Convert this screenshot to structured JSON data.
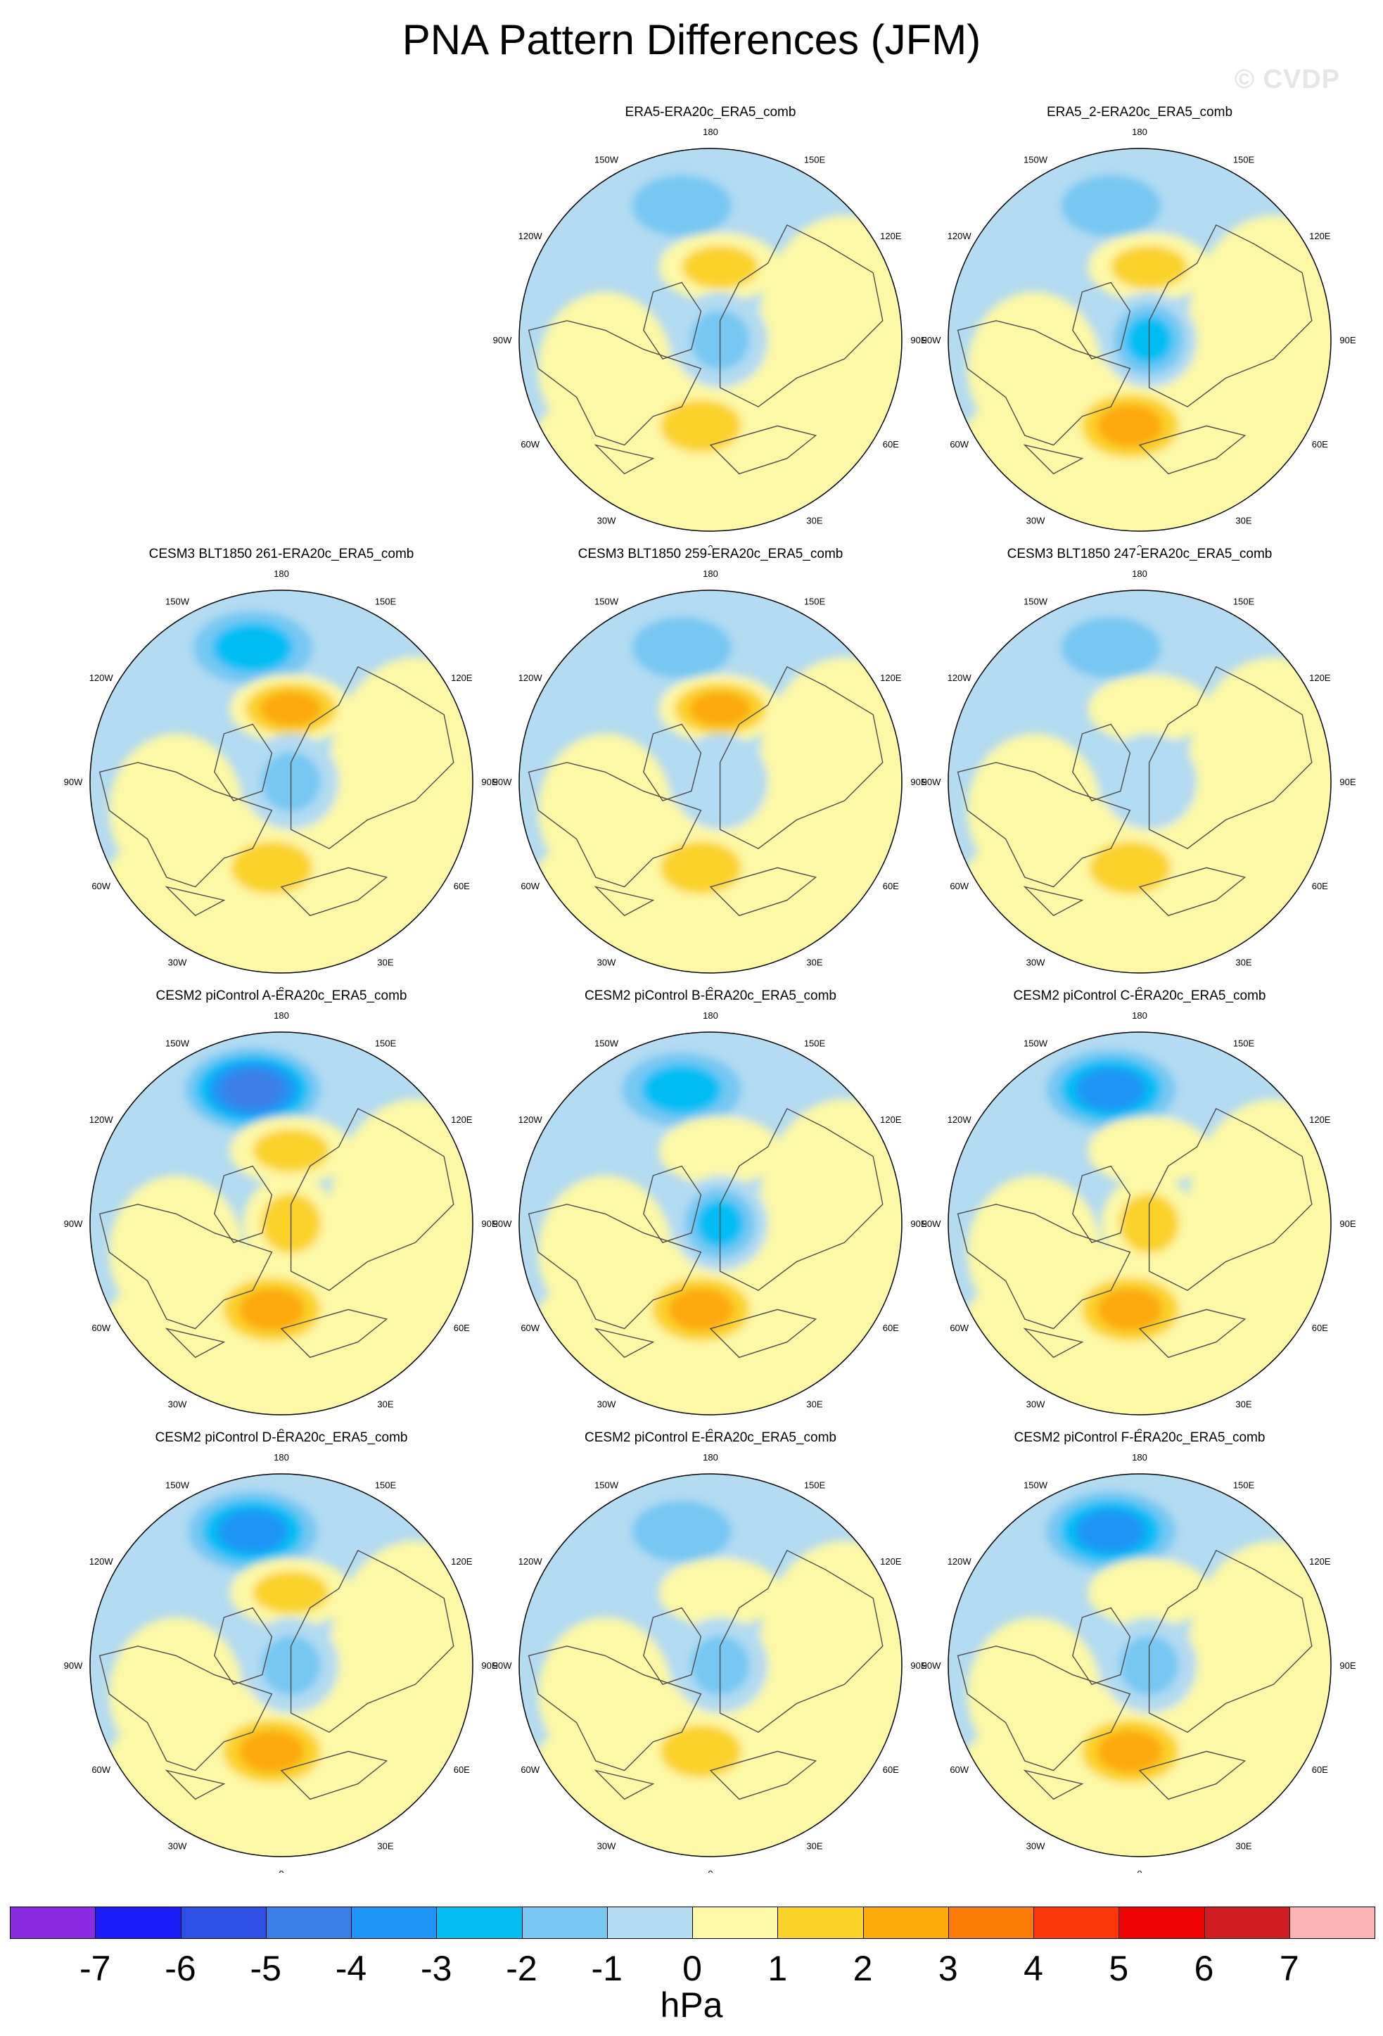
{
  "page": {
    "title": "PNA Pattern Differences (JFM)",
    "watermark": "© CVDP"
  },
  "palette": {
    "ocean_base": "#b3dbf1",
    "neutral": "#fdf8a6",
    "coast": "#4d4d4d",
    "bins": [
      {
        "range": "< -7",
        "color": "#8a2be2"
      },
      {
        "range": "-7 to -6",
        "color": "#1c1cf9"
      },
      {
        "range": "-6 to -5",
        "color": "#2d4fe3"
      },
      {
        "range": "-5 to -4",
        "color": "#3a7fe6"
      },
      {
        "range": "-4 to -3",
        "color": "#1e95f6"
      },
      {
        "range": "-3 to -2",
        "color": "#06bef4"
      },
      {
        "range": "-2 to -1",
        "color": "#76c8f3"
      },
      {
        "range": "-1 to 0",
        "color": "#b3dbf1"
      },
      {
        "range": "0 to 1",
        "color": "#fdf8a6"
      },
      {
        "range": "1 to 2",
        "color": "#fbd22a"
      },
      {
        "range": "2 to 3",
        "color": "#fca90a"
      },
      {
        "range": "3 to 4",
        "color": "#fc7b08"
      },
      {
        "range": "4 to 5",
        "color": "#fb370b"
      },
      {
        "range": "5 to 6",
        "color": "#ee0303"
      },
      {
        "range": "6 to 7",
        "color": "#cf1d21"
      },
      {
        "range": "> 7",
        "color": "#fcb4b5"
      }
    ]
  },
  "chart_data": {
    "type": "heatmap",
    "projection": "polar stereographic, North Hemisphere",
    "units": "hPa",
    "colorbar": {
      "ticks": [
        "-7",
        "-6",
        "-5",
        "-4",
        "-3",
        "-2",
        "-1",
        "0",
        "1",
        "2",
        "3",
        "4",
        "5",
        "6",
        "7"
      ],
      "units_label": "hPa"
    },
    "longitude_labels": [
      "180",
      "150E",
      "120E",
      "90E",
      "60E",
      "30E",
      "0",
      "30W",
      "60W",
      "90W",
      "120W",
      "150W"
    ],
    "panels": [
      {
        "title": "ERA5-ERA20c_ERA5_comb",
        "pna_pacific_low_hpa": -2,
        "pna_continent_high_hpa": 2,
        "atlantic_high_hpa": 2,
        "arctic_hpa": -2
      },
      {
        "title": "ERA5_2-ERA20c_ERA5_comb",
        "pna_pacific_low_hpa": -2,
        "pna_continent_high_hpa": 2,
        "atlantic_high_hpa": 3,
        "arctic_hpa": -3
      },
      {
        "title": "CESM3 BLT1850 261-ERA20c_ERA5_comb",
        "pna_pacific_low_hpa": -3,
        "pna_continent_high_hpa": 3,
        "atlantic_high_hpa": 2,
        "arctic_hpa": -2
      },
      {
        "title": "CESM3 BLT1850 259-ERA20c_ERA5_comb",
        "pna_pacific_low_hpa": -2,
        "pna_continent_high_hpa": 3,
        "atlantic_high_hpa": 2,
        "arctic_hpa": -1
      },
      {
        "title": "CESM3 BLT1850 247-ERA20c_ERA5_comb",
        "pna_pacific_low_hpa": -2,
        "pna_continent_high_hpa": 1,
        "atlantic_high_hpa": 2,
        "arctic_hpa": -1
      },
      {
        "title": "CESM2 piControl A-ERA20c_ERA5_comb",
        "pna_pacific_low_hpa": -5,
        "pna_continent_high_hpa": 2,
        "atlantic_high_hpa": 3,
        "arctic_hpa": 2
      },
      {
        "title": "CESM2 piControl B-ERA20c_ERA5_comb",
        "pna_pacific_low_hpa": -3,
        "pna_continent_high_hpa": 1,
        "atlantic_high_hpa": 3,
        "arctic_hpa": -3
      },
      {
        "title": "CESM2 piControl C-ERA20c_ERA5_comb",
        "pna_pacific_low_hpa": -4,
        "pna_continent_high_hpa": 1,
        "atlantic_high_hpa": 3,
        "arctic_hpa": 2
      },
      {
        "title": "CESM2 piControl D-ERA20c_ERA5_comb",
        "pna_pacific_low_hpa": -4,
        "pna_continent_high_hpa": 2,
        "atlantic_high_hpa": 3,
        "arctic_hpa": -2
      },
      {
        "title": "CESM2 piControl E-ERA20c_ERA5_comb",
        "pna_pacific_low_hpa": -2,
        "pna_continent_high_hpa": 1,
        "atlantic_high_hpa": 2,
        "arctic_hpa": -2
      },
      {
        "title": "CESM2 piControl F-ERA20c_ERA5_comb",
        "pna_pacific_low_hpa": -4,
        "pna_continent_high_hpa": 1,
        "atlantic_high_hpa": 3,
        "arctic_hpa": -2
      }
    ]
  }
}
